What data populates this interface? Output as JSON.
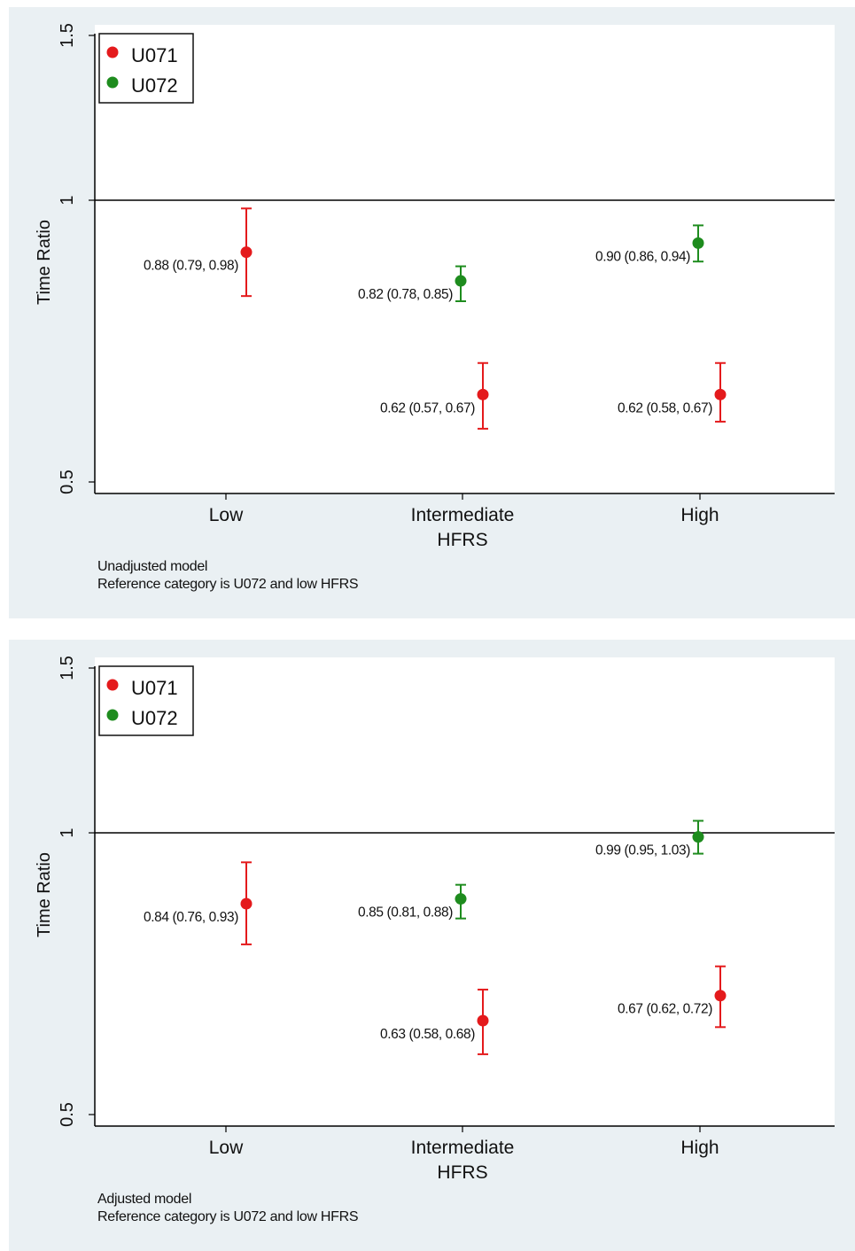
{
  "colors": {
    "panel_bg": "#eaf0f3",
    "plot_bg": "#ffffff",
    "u071": "#e41a1c",
    "u072": "#1e8c1e",
    "axis": "#000000"
  },
  "chart_data": [
    {
      "type": "scatter",
      "subtype": "point-with-error-bars",
      "xlabel": "HFRS",
      "ylabel": "Time Ratio",
      "y_scale": "log",
      "ylim": [
        0.5,
        1.5
      ],
      "yticks": [
        "0.5",
        "1",
        "1.5"
      ],
      "categories": [
        "Low",
        "Intermediate",
        "High"
      ],
      "reference_line": 1,
      "legend": {
        "position": "top-left",
        "entries": [
          "U071",
          "U072"
        ]
      },
      "notes": [
        "Unadjusted model",
        "Reference category is U072 and low HFRS"
      ],
      "series": [
        {
          "name": "U071",
          "color": "#e41a1c",
          "points": [
            {
              "category": "Low",
              "value": 0.88,
              "lower": 0.79,
              "upper": 0.98,
              "label": "0.88 (0.79, 0.98)"
            },
            {
              "category": "Intermediate",
              "value": 0.62,
              "lower": 0.57,
              "upper": 0.67,
              "label": "0.62 (0.57, 0.67)"
            },
            {
              "category": "High",
              "value": 0.62,
              "lower": 0.58,
              "upper": 0.67,
              "label": "0.62 (0.58, 0.67)"
            }
          ]
        },
        {
          "name": "U072",
          "color": "#1e8c1e",
          "points": [
            {
              "category": "Intermediate",
              "value": 0.82,
              "lower": 0.78,
              "upper": 0.85,
              "label": "0.82 (0.78, 0.85)"
            },
            {
              "category": "High",
              "value": 0.9,
              "lower": 0.86,
              "upper": 0.94,
              "label": "0.90 (0.86, 0.94)"
            }
          ]
        }
      ]
    },
    {
      "type": "scatter",
      "subtype": "point-with-error-bars",
      "xlabel": "HFRS",
      "ylabel": "Time Ratio",
      "y_scale": "log",
      "ylim": [
        0.5,
        1.5
      ],
      "yticks": [
        "0.5",
        "1",
        "1.5"
      ],
      "categories": [
        "Low",
        "Intermediate",
        "High"
      ],
      "reference_line": 1,
      "legend": {
        "position": "top-left",
        "entries": [
          "U071",
          "U072"
        ]
      },
      "notes": [
        "Adjusted model",
        "Reference category is U072 and low HFRS"
      ],
      "series": [
        {
          "name": "U071",
          "color": "#e41a1c",
          "points": [
            {
              "category": "Low",
              "value": 0.84,
              "lower": 0.76,
              "upper": 0.93,
              "label": "0.84 (0.76, 0.93)"
            },
            {
              "category": "Intermediate",
              "value": 0.63,
              "lower": 0.58,
              "upper": 0.68,
              "label": "0.63 (0.58, 0.68)"
            },
            {
              "category": "High",
              "value": 0.67,
              "lower": 0.62,
              "upper": 0.72,
              "label": "0.67 (0.62, 0.72)"
            }
          ]
        },
        {
          "name": "U072",
          "color": "#1e8c1e",
          "points": [
            {
              "category": "Intermediate",
              "value": 0.85,
              "lower": 0.81,
              "upper": 0.88,
              "label": "0.85 (0.81, 0.88)"
            },
            {
              "category": "High",
              "value": 0.99,
              "lower": 0.95,
              "upper": 1.03,
              "label": "0.99 (0.95, 1.03)"
            }
          ]
        }
      ]
    }
  ]
}
